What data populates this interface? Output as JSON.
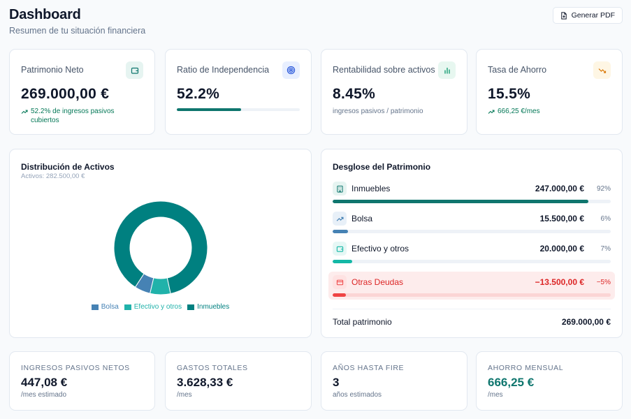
{
  "header": {
    "title": "Dashboard",
    "subtitle": "Resumen de tu situación financiera",
    "pdf_button": "Generar PDF"
  },
  "kpis": [
    {
      "label": "Patrimonio Neto",
      "value": "269.000,00 €",
      "sub": "52.2% de ingresos pasivos cubiertos",
      "icon": "wallet-icon",
      "icon_color": "#0f766e",
      "icon_bg": "#e6f4f1"
    },
    {
      "label": "Ratio de Independencia",
      "value": "52.2%",
      "progress": 0.522,
      "icon": "target-icon",
      "icon_color": "#1d4ed8",
      "icon_bg": "#e8efff"
    },
    {
      "label": "Rentabilidad sobre activos",
      "value": "8.45%",
      "sub": "ingresos pasivos / patrimonio",
      "icon": "bar-chart-icon",
      "icon_color": "#059669",
      "icon_bg": "#e7f7f0"
    },
    {
      "label": "Tasa de Ahorro",
      "value": "15.5%",
      "sub": "666,25 €/mes",
      "icon": "trending-down-icon",
      "icon_color": "#d97706",
      "icon_bg": "#fef6e4"
    }
  ],
  "distribution": {
    "title": "Distribución de Activos",
    "subtitle": "Activos: 282.500,00 €",
    "chart_data": {
      "type": "pie",
      "categories": [
        "Bolsa",
        "Efectivo y otros",
        "Inmuebles"
      ],
      "values": [
        15500,
        20000,
        247000
      ],
      "colors": [
        "#4682b4",
        "#20b2aa",
        "#008080"
      ],
      "legend": "bottom"
    }
  },
  "breakdown": {
    "title": "Desglose del Patrimonio",
    "rows": [
      {
        "name": "Inmuebles",
        "amount": "247.000,00 €",
        "pct": "92%",
        "fraction": 0.92,
        "icon": "building-icon",
        "color": "#0f766e",
        "icon_bg": "#e6f4f1"
      },
      {
        "name": "Bolsa",
        "amount": "15.500,00 €",
        "pct": "6%",
        "fraction": 0.055,
        "icon": "trending-up-icon",
        "color": "#4682b4",
        "icon_bg": "#e8f0f8"
      },
      {
        "name": "Efectivo y otros",
        "amount": "20.000,00 €",
        "pct": "7%",
        "fraction": 0.071,
        "icon": "wallet-icon",
        "color": "#14b8a6",
        "icon_bg": "#e6f7f5"
      },
      {
        "name": "Otras Deudas",
        "amount": "−13.500,00 €",
        "pct": "−5%",
        "fraction": 0.048,
        "icon": "credit-card-icon",
        "color": "#ef4444",
        "icon_bg": "#fee2e2"
      }
    ],
    "total_label": "Total patrimonio",
    "total_value": "269.000,00 €"
  },
  "stats": [
    {
      "label": "INGRESOS PASIVOS NETOS",
      "value": "447,08 €",
      "sub": "/mes estimado",
      "color": "#0f172a"
    },
    {
      "label": "GASTOS TOTALES",
      "value": "3.628,33 €",
      "sub": "/mes",
      "color": "#0f172a"
    },
    {
      "label": "AÑOS HASTA FIRE",
      "value": "3",
      "sub": "años estimados",
      "color": "#0f172a"
    },
    {
      "label": "AHORRO MENSUAL",
      "value": "666,25 €",
      "sub": "/mes",
      "color": "#0f766e"
    }
  ]
}
